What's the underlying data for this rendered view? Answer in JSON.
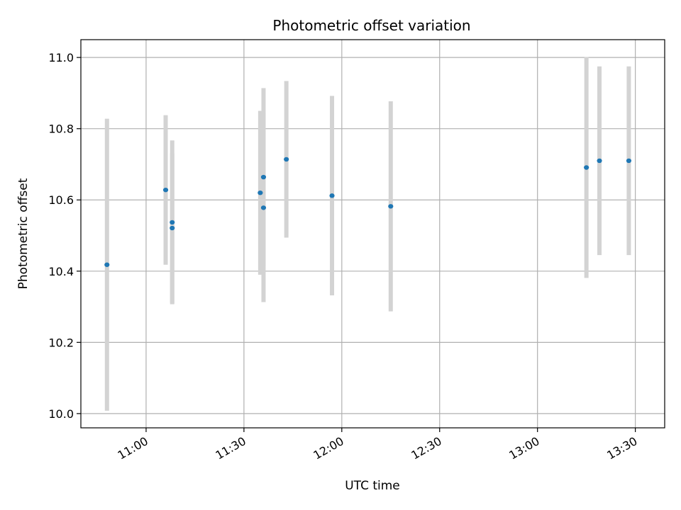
{
  "chart_data": {
    "type": "scatter",
    "title": "Photometric offset variation",
    "xlabel": "UTC time",
    "ylabel": "Photometric offset",
    "xlim": [
      "10:40",
      "13:39"
    ],
    "ylim": [
      9.96,
      11.05
    ],
    "x_ticks": [
      "11:00",
      "11:30",
      "12:00",
      "12:30",
      "13:00",
      "13:30"
    ],
    "y_ticks": [
      10.0,
      10.2,
      10.4,
      10.6,
      10.8,
      11.0
    ],
    "y_tick_labels": [
      "10.0",
      "10.2",
      "10.4",
      "10.6",
      "10.8",
      "11.0"
    ],
    "grid": true,
    "point_color": "#1f77b4",
    "errorbar_color": "#d3d3d3",
    "points": [
      {
        "t": "10:48",
        "y": 10.418,
        "err": 0.41
      },
      {
        "t": "11:06",
        "y": 10.628,
        "err": 0.21
      },
      {
        "t": "11:08",
        "y": 10.521,
        "err": 0.21
      },
      {
        "t": "11:08",
        "y": 10.537,
        "err": 0.23
      },
      {
        "t": "11:35",
        "y": 10.62,
        "err": 0.23
      },
      {
        "t": "11:36",
        "y": 10.578,
        "err": 0.265
      },
      {
        "t": "11:36",
        "y": 10.664,
        "err": 0.25
      },
      {
        "t": "11:43",
        "y": 10.714,
        "err": 0.22
      },
      {
        "t": "11:57",
        "y": 10.612,
        "err": 0.28
      },
      {
        "t": "12:15",
        "y": 10.582,
        "err": 0.295
      },
      {
        "t": "13:15",
        "y": 10.691,
        "err": 0.31
      },
      {
        "t": "13:19",
        "y": 10.71,
        "err": 0.265
      },
      {
        "t": "13:28",
        "y": 10.71,
        "err": 0.265
      }
    ]
  }
}
